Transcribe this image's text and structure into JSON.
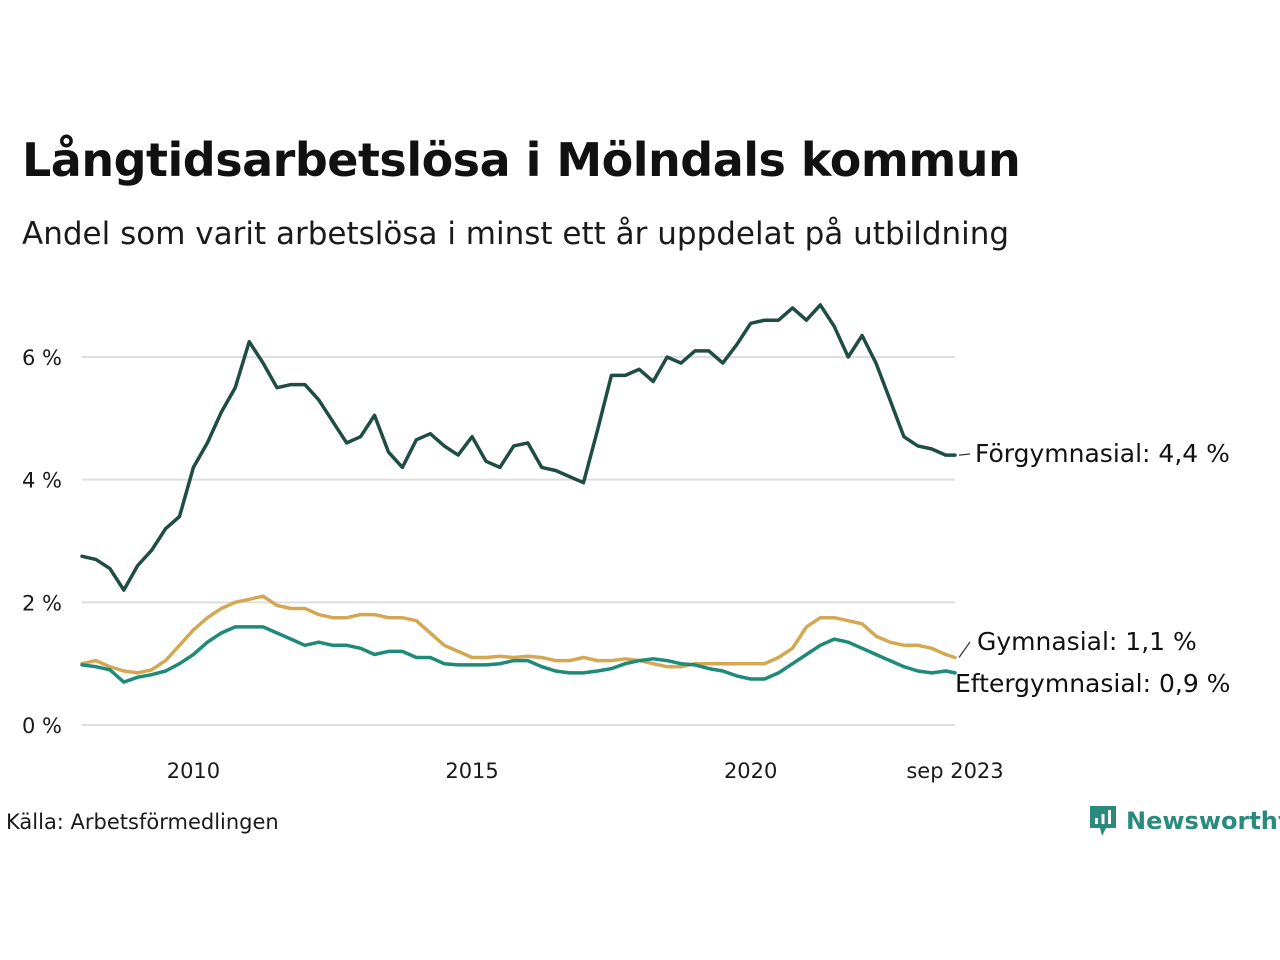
{
  "title": "Långtidsarbetslösa i Mölndals kommun",
  "subtitle": "Andel som varit arbetslösa i minst ett år uppdelat på utbildning",
  "source": "Källa: Arbetsförmedlingen",
  "brand": "Newsworthy",
  "colors": {
    "forgymnasial": "#1f4d44",
    "gymnasial": "#d4a853",
    "eftergymnasial": "#1e8a7a",
    "grid": "#dedede",
    "brand": "#2a8a7d"
  },
  "chart_data": {
    "type": "line",
    "title": "Långtidsarbetslösa i Mölndals kommun",
    "xlabel": "",
    "ylabel": "",
    "xlim": [
      2008.0,
      2023.667
    ],
    "ylim": [
      0,
      7
    ],
    "yticks": [
      0,
      2,
      4,
      6
    ],
    "ytick_labels": [
      "0 %",
      "2 %",
      "4 %",
      "6 %"
    ],
    "xticks": [
      2010,
      2015,
      2020,
      2023.667
    ],
    "xtick_labels": [
      "2010",
      "2015",
      "2020",
      "sep 2023"
    ],
    "grid": true,
    "series": [
      {
        "name": "Förgymnasial",
        "key": "forgymnasial",
        "end_label": "Förgymnasial: 4,4 %",
        "x": [
          2008.0,
          2008.25,
          2008.5,
          2008.75,
          2009.0,
          2009.25,
          2009.5,
          2009.75,
          2010.0,
          2010.25,
          2010.5,
          2010.75,
          2011.0,
          2011.25,
          2011.5,
          2011.75,
          2012.0,
          2012.25,
          2012.5,
          2012.75,
          2013.0,
          2013.25,
          2013.5,
          2013.75,
          2014.0,
          2014.25,
          2014.5,
          2014.75,
          2015.0,
          2015.25,
          2015.5,
          2015.75,
          2016.0,
          2016.25,
          2016.5,
          2016.75,
          2017.0,
          2017.25,
          2017.5,
          2017.75,
          2018.0,
          2018.25,
          2018.5,
          2018.75,
          2019.0,
          2019.25,
          2019.5,
          2019.75,
          2020.0,
          2020.25,
          2020.5,
          2020.75,
          2021.0,
          2021.25,
          2021.5,
          2021.75,
          2022.0,
          2022.25,
          2022.5,
          2022.75,
          2023.0,
          2023.25,
          2023.5,
          2023.667
        ],
        "values": [
          2.75,
          2.7,
          2.55,
          2.2,
          2.6,
          2.85,
          3.2,
          3.4,
          4.2,
          4.6,
          5.1,
          5.5,
          6.25,
          5.9,
          5.5,
          5.55,
          5.55,
          5.3,
          4.95,
          4.6,
          4.7,
          5.05,
          4.45,
          4.2,
          4.65,
          4.75,
          4.55,
          4.4,
          4.7,
          4.3,
          4.2,
          4.55,
          4.6,
          4.2,
          4.15,
          4.05,
          3.95,
          4.8,
          5.7,
          5.7,
          5.8,
          5.6,
          6.0,
          5.9,
          6.1,
          6.1,
          5.9,
          6.2,
          6.55,
          6.6,
          6.6,
          6.8,
          6.6,
          6.85,
          6.5,
          6.0,
          6.35,
          5.9,
          5.3,
          4.7,
          4.55,
          4.5,
          4.4,
          4.4
        ]
      },
      {
        "name": "Gymnasial",
        "key": "gymnasial",
        "end_label": "Gymnasial: 1,1 %",
        "x": [
          2008.0,
          2008.25,
          2008.5,
          2008.75,
          2009.0,
          2009.25,
          2009.5,
          2009.75,
          2010.0,
          2010.25,
          2010.5,
          2010.75,
          2011.0,
          2011.25,
          2011.5,
          2011.75,
          2012.0,
          2012.25,
          2012.5,
          2012.75,
          2013.0,
          2013.25,
          2013.5,
          2013.75,
          2014.0,
          2014.25,
          2014.5,
          2014.75,
          2015.0,
          2015.25,
          2015.5,
          2015.75,
          2016.0,
          2016.25,
          2016.5,
          2016.75,
          2017.0,
          2017.25,
          2017.5,
          2017.75,
          2018.0,
          2018.25,
          2018.5,
          2018.75,
          2019.0,
          2019.25,
          2019.5,
          2019.75,
          2020.0,
          2020.25,
          2020.5,
          2020.75,
          2021.0,
          2021.25,
          2021.5,
          2021.75,
          2022.0,
          2022.25,
          2022.5,
          2022.75,
          2023.0,
          2023.25,
          2023.5,
          2023.667
        ],
        "values": [
          1.0,
          1.05,
          0.95,
          0.88,
          0.85,
          0.9,
          1.05,
          1.3,
          1.55,
          1.75,
          1.9,
          2.0,
          2.05,
          2.1,
          1.95,
          1.9,
          1.9,
          1.8,
          1.75,
          1.75,
          1.8,
          1.8,
          1.75,
          1.75,
          1.7,
          1.5,
          1.3,
          1.2,
          1.1,
          1.1,
          1.12,
          1.1,
          1.12,
          1.1,
          1.05,
          1.05,
          1.1,
          1.05,
          1.05,
          1.08,
          1.05,
          1.0,
          0.95,
          0.95,
          1.0,
          1.0,
          1.0,
          1.0,
          1.0,
          1.0,
          1.1,
          1.25,
          1.6,
          1.75,
          1.75,
          1.7,
          1.65,
          1.45,
          1.35,
          1.3,
          1.3,
          1.25,
          1.15,
          1.1
        ]
      },
      {
        "name": "Eftergymnasial",
        "key": "eftergymnasial",
        "end_label": "Eftergymnasial: 0,9 %",
        "x": [
          2008.0,
          2008.25,
          2008.5,
          2008.75,
          2009.0,
          2009.25,
          2009.5,
          2009.75,
          2010.0,
          2010.25,
          2010.5,
          2010.75,
          2011.0,
          2011.25,
          2011.5,
          2011.75,
          2012.0,
          2012.25,
          2012.5,
          2012.75,
          2013.0,
          2013.25,
          2013.5,
          2013.75,
          2014.0,
          2014.25,
          2014.5,
          2014.75,
          2015.0,
          2015.25,
          2015.5,
          2015.75,
          2016.0,
          2016.25,
          2016.5,
          2016.75,
          2017.0,
          2017.25,
          2017.5,
          2017.75,
          2018.0,
          2018.25,
          2018.5,
          2018.75,
          2019.0,
          2019.25,
          2019.5,
          2019.75,
          2020.0,
          2020.25,
          2020.5,
          2020.75,
          2021.0,
          2021.25,
          2021.5,
          2021.75,
          2022.0,
          2022.25,
          2022.5,
          2022.75,
          2023.0,
          2023.25,
          2023.5,
          2023.667
        ],
        "values": [
          0.98,
          0.95,
          0.9,
          0.7,
          0.78,
          0.82,
          0.88,
          1.0,
          1.15,
          1.35,
          1.5,
          1.6,
          1.6,
          1.6,
          1.5,
          1.4,
          1.3,
          1.35,
          1.3,
          1.3,
          1.25,
          1.15,
          1.2,
          1.2,
          1.1,
          1.1,
          1.0,
          0.98,
          0.98,
          0.98,
          1.0,
          1.05,
          1.05,
          0.95,
          0.88,
          0.85,
          0.85,
          0.88,
          0.92,
          1.0,
          1.05,
          1.08,
          1.05,
          1.0,
          0.98,
          0.92,
          0.88,
          0.8,
          0.75,
          0.75,
          0.85,
          1.0,
          1.15,
          1.3,
          1.4,
          1.35,
          1.25,
          1.15,
          1.05,
          0.95,
          0.88,
          0.85,
          0.88,
          0.85
        ]
      }
    ]
  }
}
